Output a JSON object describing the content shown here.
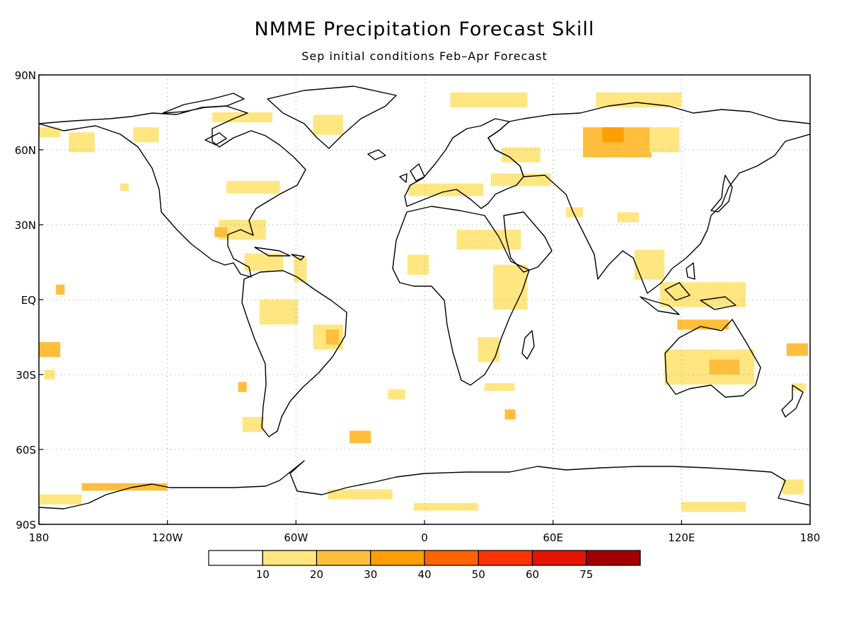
{
  "title": "NMME Precipitation Forecast Skill",
  "subtitle": "Sep initial conditions  Feb–Apr Forecast",
  "map": {
    "lon_range": [
      -180,
      180
    ],
    "lat_range": [
      -90,
      90
    ],
    "lat_labels": [
      {
        "lat": 90,
        "text": "90N"
      },
      {
        "lat": 60,
        "text": "60N"
      },
      {
        "lat": 30,
        "text": "30N"
      },
      {
        "lat": 0,
        "text": "EQ"
      },
      {
        "lat": -30,
        "text": "30S"
      },
      {
        "lat": -60,
        "text": "60S"
      },
      {
        "lat": -90,
        "text": "90S"
      }
    ],
    "lon_labels": [
      {
        "lon": -180,
        "text": "180"
      },
      {
        "lon": -120,
        "text": "120W"
      },
      {
        "lon": -60,
        "text": "60W"
      },
      {
        "lon": 0,
        "text": "0"
      },
      {
        "lon": 60,
        "text": "60E"
      },
      {
        "lon": 120,
        "text": "120E"
      },
      {
        "lon": 180,
        "text": "180"
      }
    ],
    "gridlines": "dotted"
  },
  "colorbar": {
    "bins": [
      {
        "color": "#ffffff"
      },
      {
        "color": "#ffe680"
      },
      {
        "color": "#ffbe3c"
      },
      {
        "color": "#ff9e00"
      },
      {
        "color": "#ff6400"
      },
      {
        "color": "#ff3200"
      },
      {
        "color": "#e01400"
      },
      {
        "color": "#a00000"
      }
    ],
    "labels": [
      "10",
      "20",
      "30",
      "40",
      "50",
      "60",
      "75"
    ]
  },
  "skill_regions": [
    {
      "lon": 90,
      "lat": 63,
      "w": 32,
      "h": 12,
      "level": 2
    },
    {
      "lon": 88,
      "lat": 66,
      "w": 10,
      "h": 6,
      "level": 3
    },
    {
      "lon": 112,
      "lat": 64,
      "w": 14,
      "h": 10,
      "level": 1
    },
    {
      "lon": 30,
      "lat": 80,
      "w": 36,
      "h": 6,
      "level": 1
    },
    {
      "lon": 100,
      "lat": 80,
      "w": 40,
      "h": 6,
      "level": 1
    },
    {
      "lon": 45,
      "lat": 58,
      "w": 18,
      "h": 6,
      "level": 1
    },
    {
      "lon": 45,
      "lat": 48,
      "w": 28,
      "h": 5,
      "level": 1
    },
    {
      "lon": 10,
      "lat": 44,
      "w": 35,
      "h": 5,
      "level": 1
    },
    {
      "lon": 30,
      "lat": 24,
      "w": 30,
      "h": 8,
      "level": 1
    },
    {
      "lon": -3,
      "lat": 14,
      "w": 10,
      "h": 8,
      "level": 1
    },
    {
      "lon": 40,
      "lat": 5,
      "w": 16,
      "h": 18,
      "level": 1
    },
    {
      "lon": 30,
      "lat": -20,
      "w": 10,
      "h": 10,
      "level": 1
    },
    {
      "lon": 35,
      "lat": -35,
      "w": 14,
      "h": 3,
      "level": 1
    },
    {
      "lon": 105,
      "lat": 14,
      "w": 14,
      "h": 12,
      "level": 1
    },
    {
      "lon": 130,
      "lat": 2,
      "w": 40,
      "h": 10,
      "level": 1
    },
    {
      "lon": 130,
      "lat": -10,
      "w": 24,
      "h": 4,
      "level": 2
    },
    {
      "lon": 133,
      "lat": -27,
      "w": 42,
      "h": 14,
      "level": 1
    },
    {
      "lon": 140,
      "lat": -27,
      "w": 14,
      "h": 6,
      "level": 2
    },
    {
      "lon": 174,
      "lat": -20,
      "w": 10,
      "h": 5,
      "level": 2
    },
    {
      "lon": -85,
      "lat": 28,
      "w": 22,
      "h": 8,
      "level": 1
    },
    {
      "lon": -95,
      "lat": 27,
      "w": 6,
      "h": 4,
      "level": 2
    },
    {
      "lon": -80,
      "lat": 45,
      "w": 25,
      "h": 5,
      "level": 1
    },
    {
      "lon": -75,
      "lat": 15,
      "w": 18,
      "h": 7,
      "level": 1
    },
    {
      "lon": -58,
      "lat": 12,
      "w": 6,
      "h": 10,
      "level": 1
    },
    {
      "lon": -45,
      "lat": -15,
      "w": 14,
      "h": 10,
      "level": 1
    },
    {
      "lon": -43,
      "lat": -15,
      "w": 6,
      "h": 6,
      "level": 2
    },
    {
      "lon": -68,
      "lat": -5,
      "w": 18,
      "h": 10,
      "level": 1
    },
    {
      "lon": -160,
      "lat": 63,
      "w": 12,
      "h": 8,
      "level": 1
    },
    {
      "lon": -130,
      "lat": 66,
      "w": 12,
      "h": 6,
      "level": 1
    },
    {
      "lon": -140,
      "lat": 45,
      "w": 4,
      "h": 3,
      "level": 1
    },
    {
      "lon": -170,
      "lat": 4,
      "w": 4,
      "h": 4,
      "level": 2
    },
    {
      "lon": -175,
      "lat": -20,
      "w": 10,
      "h": 6,
      "level": 2
    },
    {
      "lon": -85,
      "lat": -35,
      "w": 4,
      "h": 4,
      "level": 2
    },
    {
      "lon": -80,
      "lat": -50,
      "w": 10,
      "h": 6,
      "level": 1
    },
    {
      "lon": -30,
      "lat": -55,
      "w": 10,
      "h": 5,
      "level": 2
    },
    {
      "lon": -13,
      "lat": -38,
      "w": 8,
      "h": 4,
      "level": 1
    },
    {
      "lon": 40,
      "lat": -46,
      "w": 5,
      "h": 4,
      "level": 2
    },
    {
      "lon": -140,
      "lat": -75,
      "w": 40,
      "h": 3,
      "level": 2
    },
    {
      "lon": -170,
      "lat": -80,
      "w": 20,
      "h": 4,
      "level": 1
    },
    {
      "lon": -30,
      "lat": -78,
      "w": 30,
      "h": 4,
      "level": 1
    },
    {
      "lon": 10,
      "lat": -83,
      "w": 30,
      "h": 3,
      "level": 1
    },
    {
      "lon": 135,
      "lat": -83,
      "w": 30,
      "h": 4,
      "level": 1
    },
    {
      "lon": 172,
      "lat": -75,
      "w": 10,
      "h": 6,
      "level": 1
    },
    {
      "lon": -85,
      "lat": 73,
      "w": 28,
      "h": 4,
      "level": 1
    },
    {
      "lon": -45,
      "lat": 70,
      "w": 14,
      "h": 8,
      "level": 1
    },
    {
      "lon": -175,
      "lat": 67,
      "w": 10,
      "h": 4,
      "level": 1
    },
    {
      "lon": -175,
      "lat": -30,
      "w": 5,
      "h": 4,
      "level": 1
    },
    {
      "lon": 70,
      "lat": 35,
      "w": 8,
      "h": 4,
      "level": 1
    },
    {
      "lon": 95,
      "lat": 33,
      "w": 10,
      "h": 4,
      "level": 1
    },
    {
      "lon": 175,
      "lat": -35,
      "w": 6,
      "h": 3,
      "level": 1
    }
  ]
}
